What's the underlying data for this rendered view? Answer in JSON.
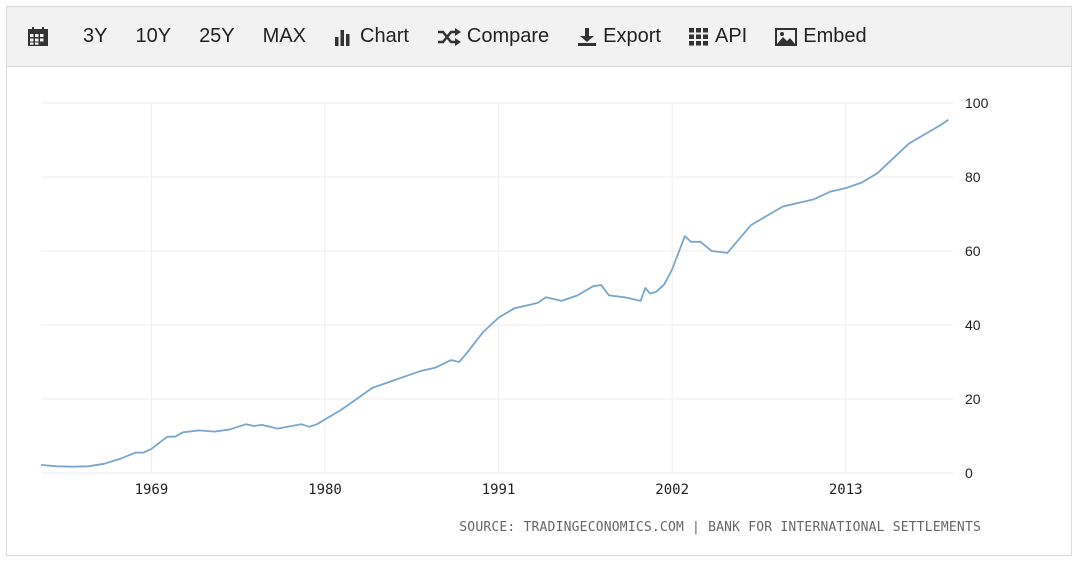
{
  "toolbar": {
    "calendar_icon": "calendar-icon",
    "range_3y": "3Y",
    "range_10y": "10Y",
    "range_25y": "25Y",
    "range_max": "MAX",
    "chart_label": "Chart",
    "compare_label": "Compare",
    "export_label": "Export",
    "api_label": "API",
    "embed_label": "Embed"
  },
  "source_text": "SOURCE: TRADINGECONOMICS.COM | BANK FOR INTERNATIONAL SETTLEMENTS",
  "colors": {
    "line": "#7aa6cc",
    "grid": "#eeeeee",
    "text": "#222222"
  },
  "chart_data": {
    "type": "line",
    "title": "",
    "xlabel": "",
    "ylabel": "",
    "xlim": [
      1962.0,
      2019.8
    ],
    "ylim": [
      0,
      100
    ],
    "x_ticks": [
      1969,
      1980,
      1991,
      2002,
      2013
    ],
    "y_ticks": [
      0,
      20,
      40,
      60,
      80,
      100
    ],
    "grid": true,
    "series": [
      {
        "name": "",
        "x": [
          1962.0,
          1963.0,
          1964.0,
          1965.0,
          1966.0,
          1967.0,
          1968.0,
          1968.5,
          1969.0,
          1970.0,
          1970.5,
          1971.0,
          1972.0,
          1973.0,
          1974.0,
          1975.0,
          1975.5,
          1976.0,
          1977.0,
          1978.0,
          1978.5,
          1979.0,
          1979.5,
          1980.0,
          1981.0,
          1982.0,
          1983.0,
          1984.0,
          1985.0,
          1986.0,
          1987.0,
          1988.0,
          1988.5,
          1989.0,
          1990.0,
          1991.0,
          1992.0,
          1993.0,
          1993.5,
          1994.0,
          1995.0,
          1996.0,
          1997.0,
          1997.5,
          1998.0,
          1999.0,
          2000.0,
          2000.3,
          2000.6,
          2001.0,
          2001.5,
          2002.0,
          2002.8,
          2003.2,
          2003.8,
          2004.5,
          2005.5,
          2006.0,
          2007.0,
          2008.0,
          2009.0,
          2010.0,
          2011.0,
          2012.0,
          2013.0,
          2014.0,
          2015.0,
          2016.0,
          2017.0,
          2018.0,
          2019.0,
          2019.5
        ],
        "values": [
          2.2,
          1.8,
          1.7,
          1.8,
          2.5,
          3.8,
          5.5,
          5.5,
          6.5,
          9.8,
          9.8,
          11.0,
          11.5,
          11.2,
          11.8,
          13.2,
          12.7,
          13.0,
          12.0,
          12.8,
          13.2,
          12.5,
          13.2,
          14.5,
          17.0,
          20.0,
          23.0,
          24.5,
          26.0,
          27.5,
          28.5,
          30.5,
          30.0,
          32.5,
          38.0,
          42.0,
          44.5,
          45.5,
          46.0,
          47.5,
          46.5,
          48.0,
          50.5,
          50.8,
          48.0,
          47.5,
          46.5,
          50.0,
          48.5,
          49.0,
          51.0,
          55.0,
          64.0,
          62.5,
          62.5,
          60.0,
          59.5,
          62.0,
          67.0,
          69.5,
          72.0,
          73.0,
          74.0,
          76.0,
          77.0,
          78.5,
          81.0,
          85.0,
          89.0,
          91.5,
          94.0,
          95.5
        ]
      }
    ]
  }
}
